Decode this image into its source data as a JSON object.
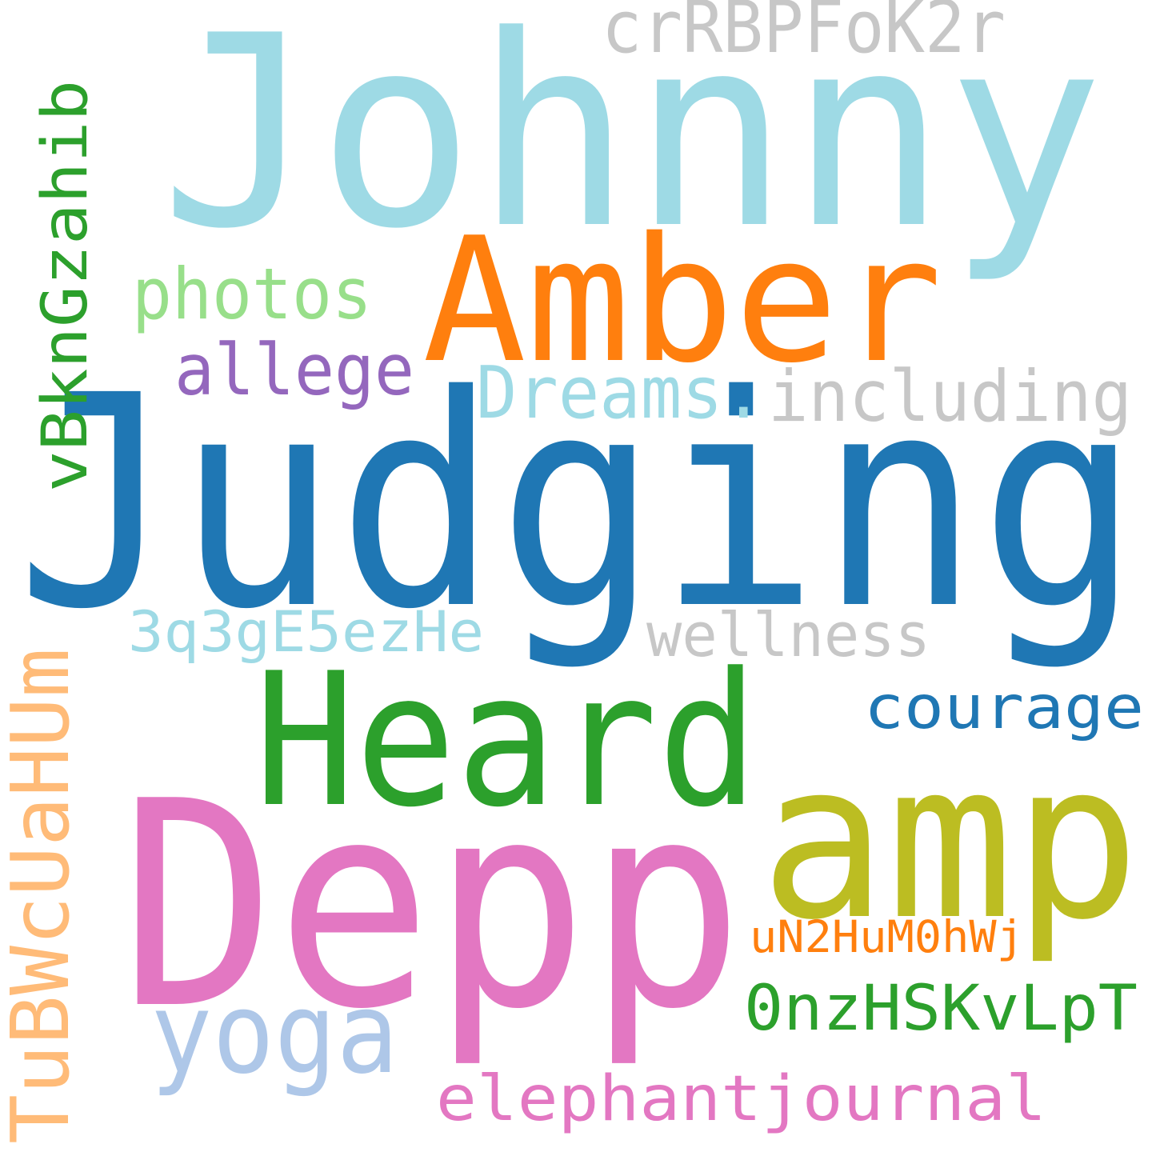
{
  "words": [
    {
      "text": "Johnny",
      "color": "#9edae5"
    },
    {
      "text": "Judging",
      "color": "#1f77b4"
    },
    {
      "text": "Depp",
      "color": "#e377c2"
    },
    {
      "text": "Heard",
      "color": "#2ca02c"
    },
    {
      "text": "amp",
      "color": "#bcbd22"
    },
    {
      "text": "Amber",
      "color": "#ff7f0e"
    },
    {
      "text": "TuBWcUaHUm",
      "color": "#ffbb78"
    },
    {
      "text": "vBknGzahib",
      "color": "#2ca02c"
    },
    {
      "text": "crRBPFoK2r",
      "color": "#c7c7c7"
    },
    {
      "text": "photos",
      "color": "#98df8a"
    },
    {
      "text": "allege",
      "color": "#9467bd"
    },
    {
      "text": "Dreams.",
      "color": "#9edae5"
    },
    {
      "text": "including",
      "color": "#c7c7c7"
    },
    {
      "text": "3q3gE5ezHe",
      "color": "#9edae5"
    },
    {
      "text": "wellness",
      "color": "#c7c7c7"
    },
    {
      "text": "courage",
      "color": "#1f77b4"
    },
    {
      "text": "yoga",
      "color": "#aec7e8"
    },
    {
      "text": "uN2HuM0hWj",
      "color": "#ff7f0e"
    },
    {
      "text": "0nzHSKvLpT",
      "color": "#2ca02c"
    },
    {
      "text": "elephantjournal",
      "color": "#e377c2"
    }
  ]
}
